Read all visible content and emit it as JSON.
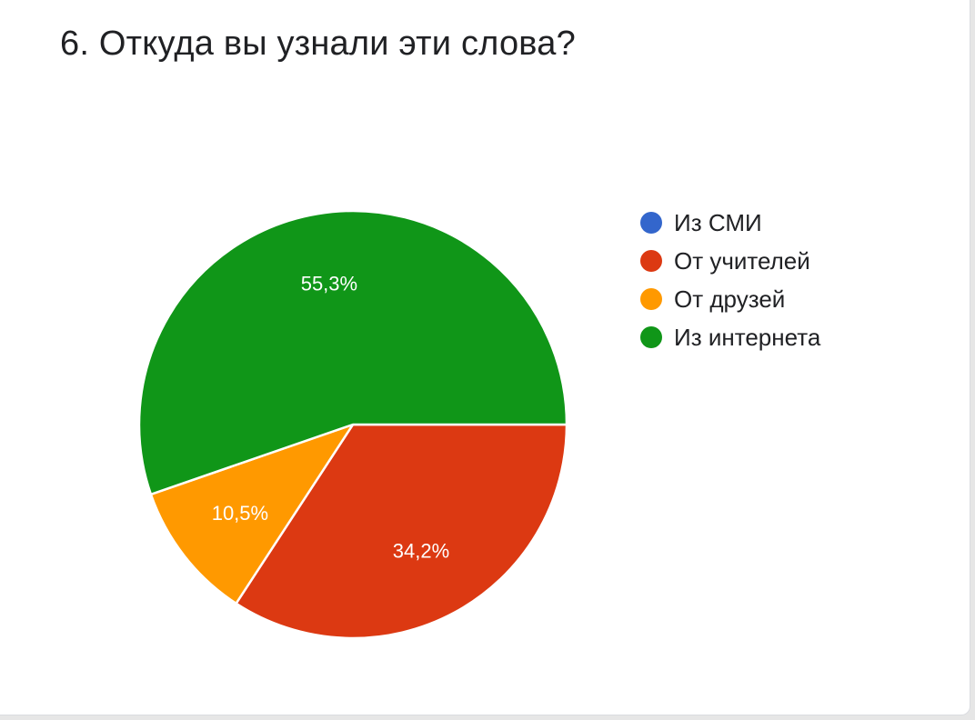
{
  "question": {
    "title": "6. Откуда вы узнали эти слова?"
  },
  "chart_data": {
    "type": "pie",
    "title": "6. Откуда вы узнали эти слова?",
    "legend_position": "right",
    "start_angle_deg": 90,
    "direction": "clockwise",
    "slices": [
      {
        "name": "Из СМИ",
        "value": 0,
        "label": "",
        "color": "#3366cc"
      },
      {
        "name": "От учителей",
        "value": 34.2,
        "label": "34,2%",
        "color": "#dc3912"
      },
      {
        "name": "От друзей",
        "value": 10.5,
        "label": "10,5%",
        "color": "#ff9900"
      },
      {
        "name": "Из интернета",
        "value": 55.3,
        "label": "55,3%",
        "color": "#109618"
      }
    ]
  },
  "colors": {
    "text": "#202124",
    "slice_label": "#ffffff",
    "slice_border": "#ffffff"
  }
}
